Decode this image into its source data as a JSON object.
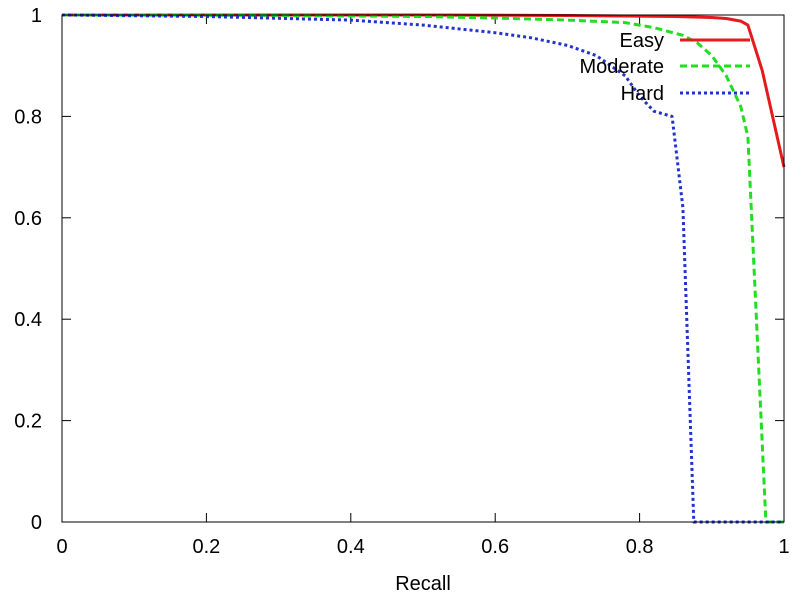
{
  "chart_data": {
    "type": "line",
    "title": "",
    "xlabel": "Recall",
    "ylabel": "",
    "xlim": [
      0,
      1
    ],
    "ylim": [
      0,
      1
    ],
    "grid": false,
    "legend_position": "top-right",
    "x_ticks": [
      "0",
      "0.2",
      "0.4",
      "0.6",
      "0.8",
      "1"
    ],
    "y_ticks": [
      "0",
      "0.2",
      "0.4",
      "0.6",
      "0.8",
      "1"
    ],
    "series": [
      {
        "name": "Easy",
        "color": "#e41a1c",
        "style": "solid",
        "points": [
          [
            0,
            1.0
          ],
          [
            0.5,
            1.0
          ],
          [
            0.7,
            0.999
          ],
          [
            0.85,
            0.997
          ],
          [
            0.9,
            0.995
          ],
          [
            0.92,
            0.993
          ],
          [
            0.94,
            0.988
          ],
          [
            0.95,
            0.98
          ],
          [
            0.97,
            0.89
          ],
          [
            1.0,
            0.7
          ]
        ]
      },
      {
        "name": "Moderate",
        "color": "#22dd22",
        "style": "dashed",
        "points": [
          [
            0,
            1.0
          ],
          [
            0.3,
            0.999
          ],
          [
            0.5,
            0.997
          ],
          [
            0.6,
            0.994
          ],
          [
            0.7,
            0.99
          ],
          [
            0.78,
            0.985
          ],
          [
            0.82,
            0.975
          ],
          [
            0.86,
            0.96
          ],
          [
            0.88,
            0.945
          ],
          [
            0.9,
            0.92
          ],
          [
            0.92,
            0.88
          ],
          [
            0.94,
            0.82
          ],
          [
            0.95,
            0.76
          ],
          [
            0.975,
            0.0
          ],
          [
            1.0,
            0.0
          ]
        ]
      },
      {
        "name": "Hard",
        "color": "#2233cc",
        "style": "dotted",
        "points": [
          [
            0,
            1.0
          ],
          [
            0.2,
            0.997
          ],
          [
            0.4,
            0.99
          ],
          [
            0.5,
            0.98
          ],
          [
            0.6,
            0.965
          ],
          [
            0.65,
            0.955
          ],
          [
            0.7,
            0.94
          ],
          [
            0.74,
            0.92
          ],
          [
            0.78,
            0.88
          ],
          [
            0.8,
            0.84
          ],
          [
            0.82,
            0.81
          ],
          [
            0.845,
            0.8
          ],
          [
            0.86,
            0.62
          ],
          [
            0.875,
            0.0
          ],
          [
            1.0,
            0.0
          ]
        ]
      }
    ]
  }
}
